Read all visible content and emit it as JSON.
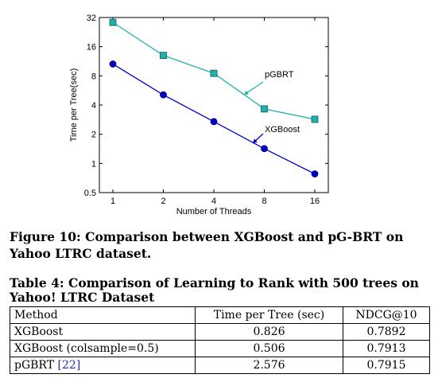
{
  "chart_data": {
    "type": "line",
    "title": "",
    "xlabel": "Number of Threads",
    "ylabel": "Time per Tree(sec)",
    "x": [
      1,
      2,
      4,
      8,
      16
    ],
    "xticks": [
      "1",
      "2",
      "4",
      "8",
      "16"
    ],
    "yticks": [
      "0.5",
      "1",
      "2",
      "4",
      "8",
      "16",
      "32"
    ],
    "ylim": [
      0.5,
      32
    ],
    "xscale": "log2",
    "yscale": "log2",
    "grid": false,
    "series": [
      {
        "name": "pGBRT",
        "values": [
          28.5,
          13.0,
          8.5,
          3.65,
          2.85
        ],
        "color": "#20b2aa",
        "marker": "square"
      },
      {
        "name": "XGBoost",
        "values": [
          10.6,
          5.1,
          2.7,
          1.42,
          0.78
        ],
        "color": "#0000cc",
        "marker": "circle"
      }
    ]
  },
  "figure": {
    "caption": "Figure 10: Comparison between XGBoost and pG-BRT on Yahoo LTRC dataset."
  },
  "table": {
    "title": "Table 4: Comparison of Learning to Rank with 500 trees on Yahoo! LTRC Dataset",
    "headers": [
      "Method",
      "Time per Tree (sec)",
      "NDCG@10"
    ],
    "rows": [
      {
        "method": "XGBoost",
        "citation": "",
        "time": "0.826",
        "ndcg": "0.7892"
      },
      {
        "method": "XGBoost (colsample=0.5)",
        "citation": "",
        "time": "0.506",
        "ndcg": "0.7913"
      },
      {
        "method": "pGBRT ",
        "citation": "[22]",
        "time": "2.576",
        "ndcg": "0.7915"
      }
    ]
  }
}
